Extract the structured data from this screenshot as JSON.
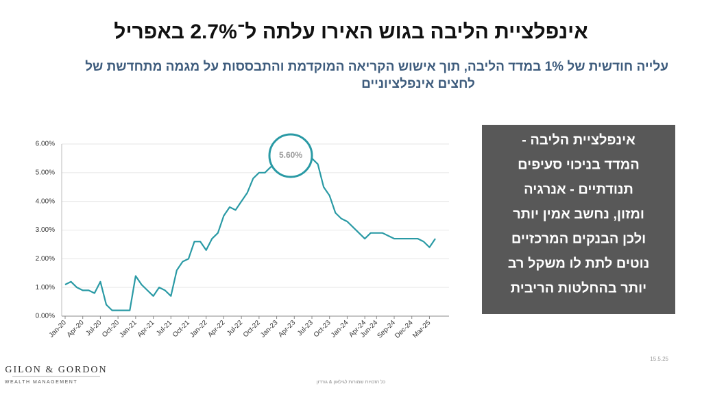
{
  "chart_data": {
    "type": "line",
    "title": "אינפלציית הליבה בגוש האירו עלתה ל־2.7% באפריל",
    "subtitle": [
      "עלייה חודשית של 1% במדד הליבה, תוך אישוש הקריאה המוקדמת והתבססות על מגמה מתחדשת של",
      "לחצים אינפלציוניים"
    ],
    "annotation": "5.60%",
    "categories": [
      "Jan-20",
      null,
      null,
      "Apr-20",
      null,
      null,
      "Jul-20",
      null,
      null,
      "Oct-20",
      null,
      null,
      "Jan-21",
      null,
      null,
      "Apr-21",
      null,
      null,
      "Jul-21",
      null,
      null,
      "Oct-21",
      null,
      null,
      "Jan-22",
      null,
      null,
      "Apr-22",
      null,
      null,
      "Jul-22",
      null,
      null,
      "Oct-22",
      null,
      null,
      "Jan-23",
      null,
      null,
      "Apr-23",
      null,
      null,
      "Jul-23",
      null,
      null,
      "Oct-23",
      null,
      null,
      "Jan-24",
      null,
      null,
      "Apr-24",
      null,
      "Jun-24",
      null,
      null,
      "Sep-24",
      null,
      null,
      "Dec-24",
      null,
      null,
      "Mar-25",
      null
    ],
    "series": [
      {
        "color": "#2a9aa5",
        "values": [
          1.1,
          1.2,
          1.0,
          0.9,
          0.9,
          0.8,
          1.2,
          0.4,
          0.2,
          0.2,
          0.2,
          0.2,
          1.4,
          1.1,
          0.9,
          0.7,
          1.0,
          0.9,
          0.7,
          1.6,
          1.9,
          2.0,
          2.6,
          2.6,
          2.3,
          2.7,
          2.9,
          3.5,
          3.8,
          3.7,
          4.0,
          4.3,
          4.8,
          5.0,
          5.0,
          5.2,
          5.3,
          5.6,
          5.7,
          5.6,
          5.3,
          5.5,
          5.5,
          5.3,
          4.5,
          4.2,
          3.6,
          3.4,
          3.3,
          3.1,
          2.9,
          2.7,
          2.9,
          2.9,
          2.9,
          2.8,
          2.7,
          2.7,
          2.7,
          2.7,
          2.7,
          2.6,
          2.4,
          2.7
        ]
      }
    ],
    "ylim": [
      0,
      6
    ],
    "yticks": [
      {
        "value": 0,
        "label": "0.00%"
      },
      {
        "value": 1,
        "label": "1.00%"
      },
      {
        "value": 2,
        "label": "2.00%"
      },
      {
        "value": 3,
        "label": "3.00%"
      },
      {
        "value": 4,
        "label": "4.00%"
      },
      {
        "value": 5,
        "label": "5.00%"
      },
      {
        "value": 6,
        "label": "6.00%"
      }
    ],
    "grid": true
  },
  "note": [
    "אינפלציית הליבה -",
    "המדד בניכוי סעיפים",
    "תנודתיים - אנרגיה",
    "ומזון, נחשב אמין יותר",
    "ולכן הבנקים המרכזיים",
    "נוטים לתת לו משקל רב",
    "יותר בהחלטות הריבית"
  ],
  "logo": {
    "name": "GILON & GORDON",
    "tagline": "WEALTH MANAGEMENT"
  },
  "footer": "כל הזכויות שמורות לגילאון & גורדון",
  "date": "15.5.25"
}
